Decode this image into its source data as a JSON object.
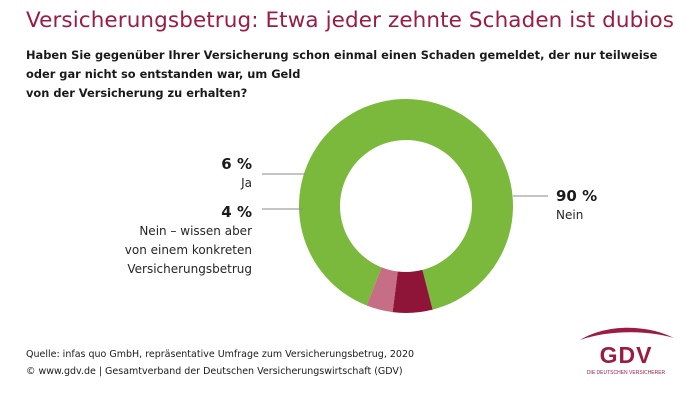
{
  "header": {
    "title": "Versicherungsbetrug: Etwa jeder zehnte Schaden ist dubios",
    "question_lines": [
      "Haben Sie gegenüber Ihrer Versicherung schon einmal einen Schaden gemeldet, der nur teilweise",
      "oder gar nicht so entstanden war, um Geld",
      "von der Versicherung zu erhalten?"
    ]
  },
  "chart_data": {
    "type": "pie",
    "donut": true,
    "title": "Versicherungsbetrug: Etwa jeder zehnte Schaden ist dubios",
    "slices": [
      {
        "label": "Nein",
        "label_lines": [
          "Nein"
        ],
        "value": 90,
        "display": "90 %",
        "color": "#7ab93b"
      },
      {
        "label": "Ja",
        "label_lines": [
          "Ja"
        ],
        "value": 6,
        "display": "6 %",
        "color": "#8e1537"
      },
      {
        "label": "Nein – wissen aber von einem konkreten Versicherungsbetrug",
        "label_lines": [
          "Nein – wissen aber",
          "von einem konkreten",
          "Versicherungsbetrug"
        ],
        "value": 4,
        "display": "4 %",
        "color": "#c56e86"
      }
    ]
  },
  "footer": {
    "source_lines": [
      "Quelle: infas quo GmbH, repräsentative Umfrage zum Versicherungsbetrug, 2020",
      "© www.gdv.de | Gesamtverband der Deutschen Versicherungswirtschaft (GDV)"
    ]
  },
  "logo": {
    "name": "GDV",
    "tagline": "DIE DEUTSCHEN VERSICHERER",
    "color": "#9b1b42"
  }
}
